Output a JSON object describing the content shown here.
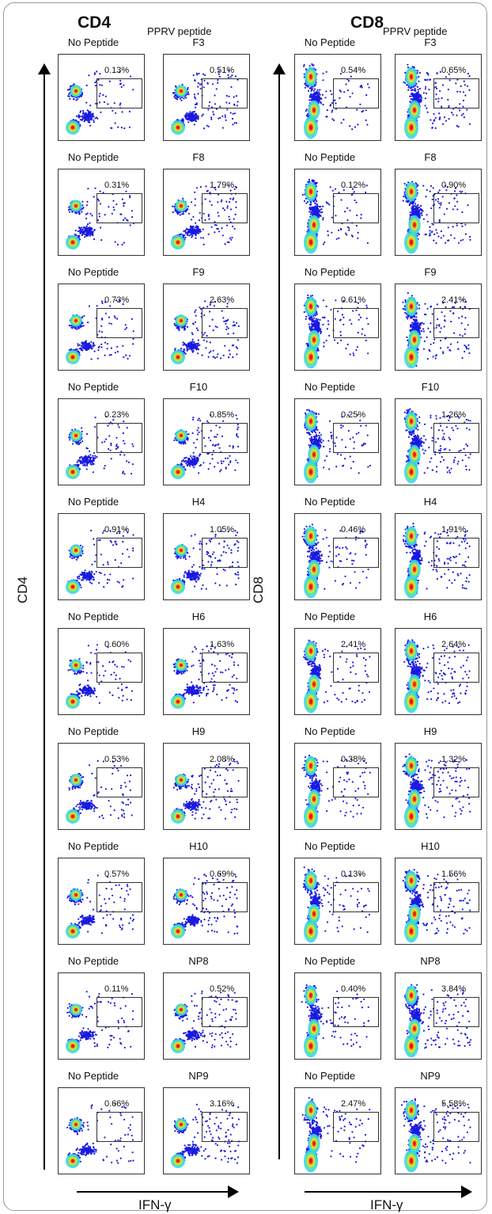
{
  "panels": [
    {
      "title": "CD4",
      "subtitle": "PPRV peptide",
      "y_axis": "CD4",
      "x_axis": "IFN-γ",
      "control_label": "No Peptide",
      "rows": [
        {
          "peptide": "F3",
          "control_pct": "0.13%",
          "peptide_pct": "0.51%"
        },
        {
          "peptide": "F8",
          "control_pct": "0.31%",
          "peptide_pct": "1.79%"
        },
        {
          "peptide": "F9",
          "control_pct": "0.73%",
          "peptide_pct": "2.63%"
        },
        {
          "peptide": "F10",
          "control_pct": "0.23%",
          "peptide_pct": "0.85%"
        },
        {
          "peptide": "H4",
          "control_pct": "0.91%",
          "peptide_pct": "1.05%"
        },
        {
          "peptide": "H6",
          "control_pct": "0.60%",
          "peptide_pct": "1.63%"
        },
        {
          "peptide": "H9",
          "control_pct": "0.53%",
          "peptide_pct": "2.08%"
        },
        {
          "peptide": "H10",
          "control_pct": "0.57%",
          "peptide_pct": "0.69%"
        },
        {
          "peptide": "NP8",
          "control_pct": "0.11%",
          "peptide_pct": "0.52%"
        },
        {
          "peptide": "NP9",
          "control_pct": "0.66%",
          "peptide_pct": "3.16%"
        }
      ]
    },
    {
      "title": "CD8",
      "subtitle": "PPRV peptide",
      "y_axis": "CD8",
      "x_axis": "IFN-γ",
      "control_label": "No Peptide",
      "rows": [
        {
          "peptide": "F3",
          "control_pct": "0.54%",
          "peptide_pct": "0.65%"
        },
        {
          "peptide": "F8",
          "control_pct": "0.12%",
          "peptide_pct": "0.90%"
        },
        {
          "peptide": "F9",
          "control_pct": "0.61%",
          "peptide_pct": "2.41%"
        },
        {
          "peptide": "F10",
          "control_pct": "0.25%",
          "peptide_pct": "1.26%"
        },
        {
          "peptide": "H4",
          "control_pct": "0.46%",
          "peptide_pct": "1.91%"
        },
        {
          "peptide": "H6",
          "control_pct": "2.41%",
          "peptide_pct": "2.64%"
        },
        {
          "peptide": "H9",
          "control_pct": "0.38%",
          "peptide_pct": "1.32%"
        },
        {
          "peptide": "H10",
          "control_pct": "0.13%",
          "peptide_pct": "1.56%"
        },
        {
          "peptide": "NP8",
          "control_pct": "0.40%",
          "peptide_pct": "3.84%"
        },
        {
          "peptide": "NP9",
          "control_pct": "2.47%",
          "peptide_pct": "5.58%"
        }
      ]
    }
  ]
}
